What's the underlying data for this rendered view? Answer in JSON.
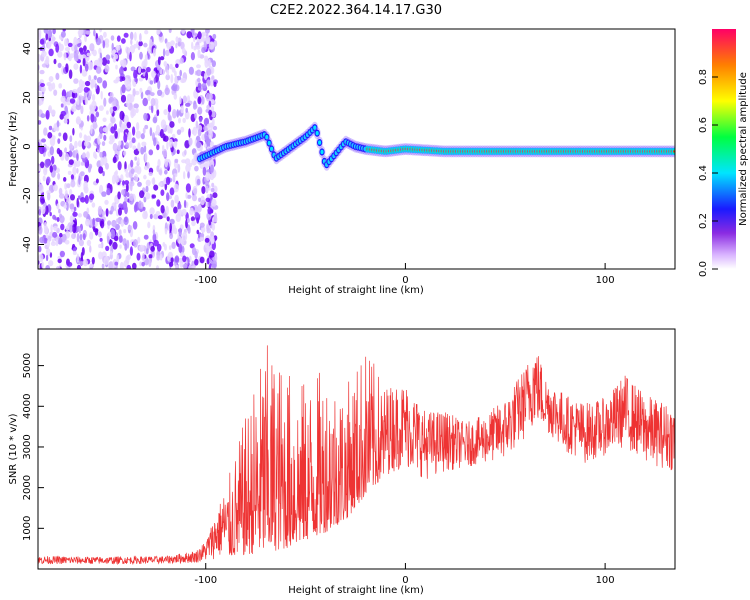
{
  "title": "C2E2.2022.364.14.17.G30",
  "chart_data": [
    {
      "type": "heatmap",
      "xlabel": "Height of straight line (km)",
      "ylabel": "Frequency (Hz)",
      "xlim": [
        -184,
        135
      ],
      "ylim": [
        -50,
        48
      ],
      "xticks": [
        -100,
        0,
        100
      ],
      "yticks": [
        -40,
        -20,
        0,
        20,
        40
      ],
      "colorbar": {
        "label": "Normalized spectral amplitude",
        "range": [
          0,
          1
        ],
        "ticks": [
          "0.0",
          "0.2",
          "0.4",
          "0.6",
          "0.8"
        ]
      },
      "features": [
        {
          "name": "noise",
          "x_range": [
            -184,
            -100
          ],
          "y_range": [
            -50,
            48
          ]
        },
        {
          "name": "ridge",
          "x": [
            -103,
            -90,
            -80,
            -70,
            -65,
            -60,
            -50,
            -45,
            -40,
            -30,
            -25,
            -20,
            -10,
            0,
            20,
            50,
            80,
            100,
            135
          ],
          "y": [
            -5,
            0,
            2,
            5,
            -5,
            -2,
            4,
            8,
            -8,
            2,
            0,
            -1,
            -2,
            -1,
            -2,
            -2,
            -2,
            -2,
            -2
          ]
        }
      ]
    },
    {
      "type": "line",
      "xlabel": "Height of straight line (km)",
      "ylabel": "SNR (10 * v/v)",
      "xlim": [
        -184,
        135
      ],
      "ylim": [
        0,
        5900
      ],
      "xticks": [
        -100,
        0,
        100
      ],
      "yticks": [
        1000,
        2000,
        3000,
        4000,
        5000
      ],
      "color": "#ee3333",
      "envelope": {
        "x": [
          -184,
          -150,
          -120,
          -105,
          -100,
          -95,
          -90,
          -80,
          -70,
          -60,
          -50,
          -40,
          -30,
          -20,
          -10,
          0,
          10,
          20,
          30,
          40,
          50,
          60,
          65,
          70,
          80,
          90,
          100,
          110,
          120,
          135
        ],
        "low": [
          120,
          120,
          130,
          150,
          200,
          250,
          300,
          350,
          400,
          500,
          700,
          900,
          1200,
          1800,
          2300,
          2500,
          2200,
          2400,
          2500,
          2600,
          2700,
          3200,
          3600,
          3400,
          2900,
          2600,
          2800,
          3000,
          2600,
          2400
        ],
        "high": [
          320,
          300,
          320,
          450,
          700,
          1400,
          2000,
          3800,
          5600,
          5000,
          4600,
          5000,
          4500,
          5500,
          4500,
          4600,
          3900,
          3900,
          3600,
          3800,
          4200,
          5000,
          5600,
          4800,
          4300,
          4100,
          4200,
          4800,
          4300,
          4000
        ]
      }
    }
  ]
}
